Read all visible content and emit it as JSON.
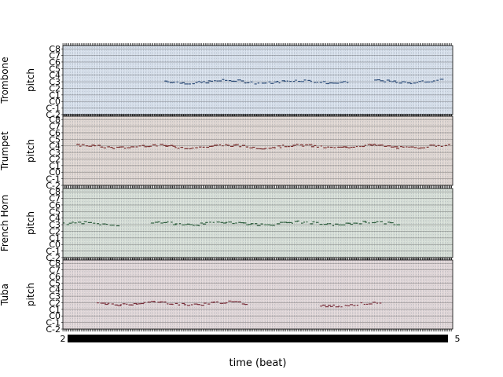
{
  "chart_data": {
    "type": "scatter",
    "title": "",
    "xlabel": "time (beat)",
    "ylabel": "pitch",
    "tracks": [
      {
        "name": "Trombone",
        "bg": "#dde6f1",
        "color": "#2e4e7a",
        "y_ticks": [
          "C8",
          "C7",
          "C6",
          "C5",
          "C4",
          "C3",
          "C2",
          "C1",
          "C0",
          "C-1",
          "C-2"
        ],
        "segments": [
          {
            "x": [
              150,
              420
            ],
            "pitch": 3.0
          },
          {
            "x": [
              460,
              560
            ],
            "pitch": 3.05
          }
        ]
      },
      {
        "name": "Trumpet",
        "bg": "#e6ddd8",
        "color": "#7a2e2e",
        "y_ticks": [
          "C8",
          "C7",
          "C6",
          "C5",
          "C4",
          "C3",
          "C2",
          "C1",
          "C0",
          "C-1",
          "C-2"
        ],
        "segments": [
          {
            "x": [
              20,
              570
            ],
            "pitch": 3.9
          }
        ]
      },
      {
        "name": "French Horn",
        "bg": "#dde5dd",
        "color": "#2e5e3e",
        "y_ticks": [
          "C8",
          "C7",
          "C6",
          "C5",
          "C4",
          "C3",
          "C2",
          "C1",
          "C0",
          "C-1",
          "C-2"
        ],
        "segments": [
          {
            "x": [
              0,
              80
            ],
            "pitch": 3.1
          },
          {
            "x": [
              130,
              495
            ],
            "pitch": 3.2
          }
        ]
      },
      {
        "name": "Tuba",
        "bg": "#e7ddde",
        "color": "#7a2e3a",
        "y_ticks": [
          "C8",
          "C7",
          "C6",
          "C5",
          "C4",
          "C3",
          "C2",
          "C1",
          "C0",
          "C-1",
          "C-2"
        ],
        "segments": [
          {
            "x": [
              50,
              270
            ],
            "pitch": 1.9
          },
          {
            "x": [
              380,
              470
            ],
            "pitch": 1.7
          }
        ]
      }
    ],
    "x_tick_label_first": "2",
    "x_tick_label_last": "5",
    "pitch_range": [
      -2,
      8.5
    ]
  }
}
